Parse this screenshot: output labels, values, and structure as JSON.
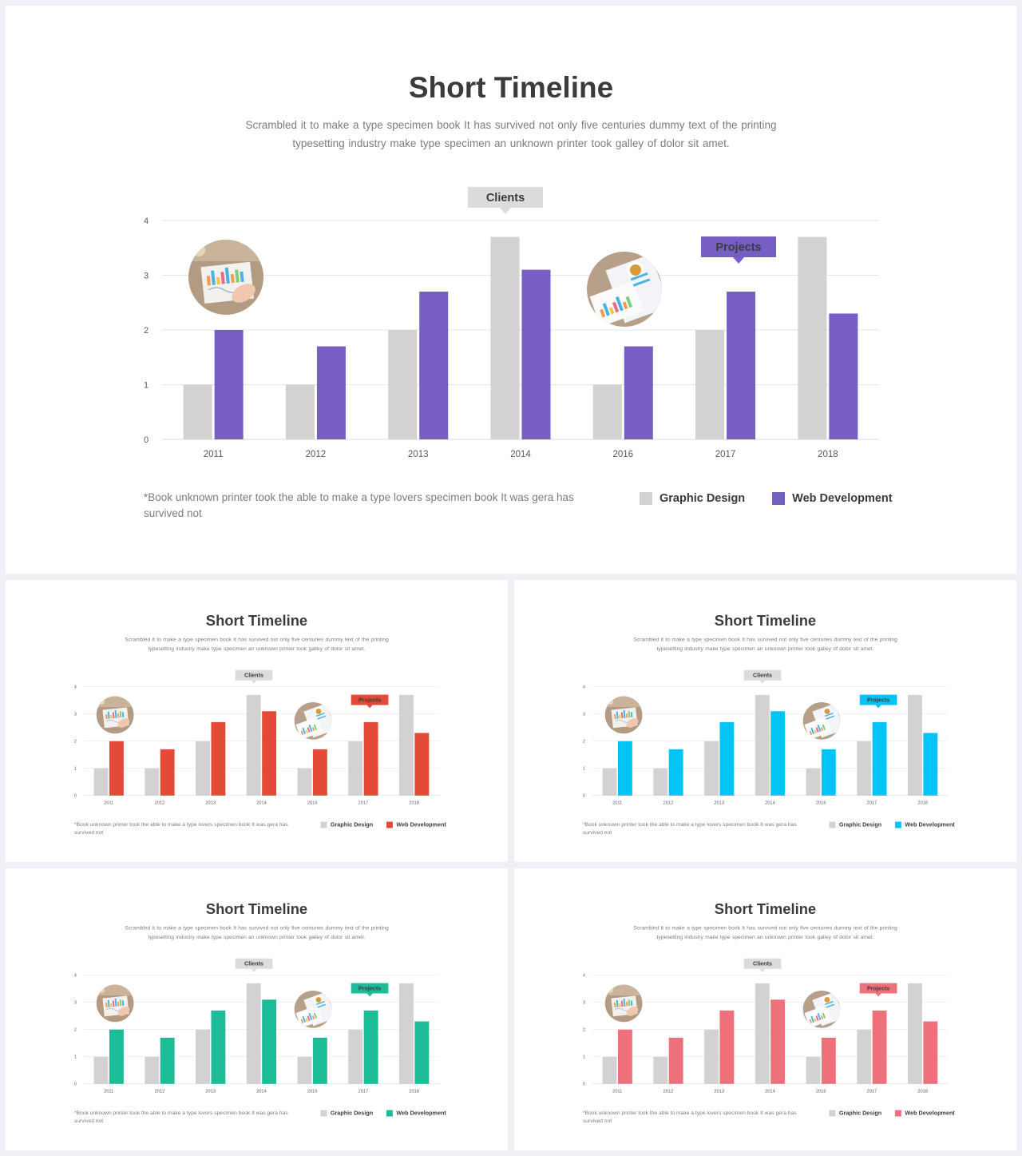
{
  "slide": {
    "title": "Short Timeline",
    "subtitle": "Scrambled it to make a type specimen book It has survived  not only five  centuries dummy text of the printing typesetting industry make type specimen an unknown printer took galley of dolor sit amet.",
    "note": "*Book unknown  printer took the able to make a type lovers  specimen book It was gera has survived not",
    "callouts": {
      "clients": "Clients",
      "projects": "Projects"
    },
    "legend": {
      "graphic_design": "Graphic Design",
      "web_development": "Web Development"
    }
  },
  "colors": {
    "graphic_design": "#d3d1d2",
    "callout_clients": "#dcdcdc",
    "slides_accent": [
      "#765ec4",
      "#e34b38",
      "#04c3f5",
      "#1dbc98",
      "#ee707b"
    ]
  },
  "icons": [
    "analytics-photo-hand",
    "analytics-photo-desk"
  ],
  "chart_data": {
    "type": "bar",
    "categories": [
      "2011",
      "2012",
      "2013",
      "2014",
      "2016",
      "2017",
      "2018"
    ],
    "series": [
      {
        "name": "Graphic Design",
        "values": [
          1,
          1,
          2,
          3.7,
          1,
          2,
          3.7
        ]
      },
      {
        "name": "Web Development",
        "values": [
          2,
          1.7,
          2.7,
          3.1,
          1.7,
          2.7,
          2.3
        ]
      }
    ],
    "yticks": [
      0,
      1,
      2,
      3,
      4
    ],
    "ylim": [
      0,
      4
    ],
    "grid": true,
    "legend": "bottom-right"
  }
}
